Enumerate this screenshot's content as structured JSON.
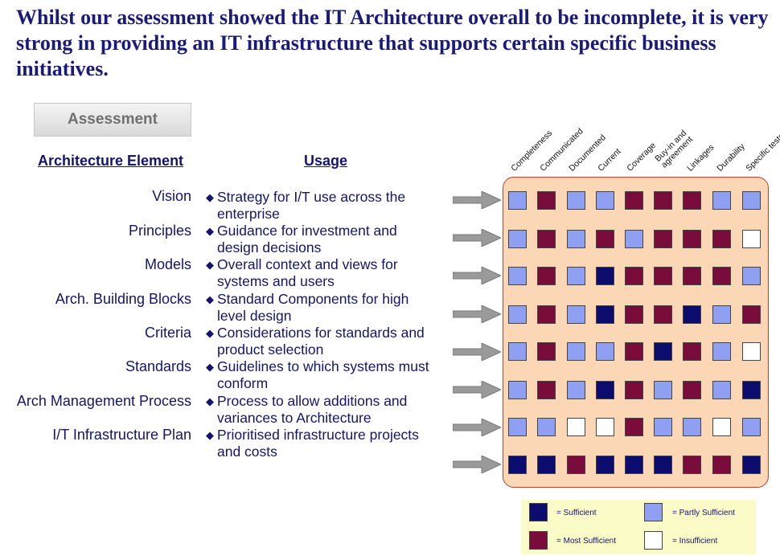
{
  "headline": "Whilst our assessment showed the IT Architecture overall to be incomplete, it is very strong in providing an IT infrastructure that supports certain specific business initiatives.",
  "assessment_label": "Assessment",
  "column_headers": {
    "element": "Architecture Element",
    "usage": "Usage"
  },
  "rows": [
    {
      "element": "Vision",
      "usage_line1": "Strategy for I/T use across the",
      "usage_line2": "enterprise"
    },
    {
      "element": "Principles",
      "usage_line1": "Guidance for investment and",
      "usage_line2": "design decisions"
    },
    {
      "element": "Models",
      "usage_line1": "Overall context and views for",
      "usage_line2": "systems and users"
    },
    {
      "element": "Arch. Building Blocks",
      "usage_line1": "Standard Components for high",
      "usage_line2": "level design"
    },
    {
      "element": "Criteria",
      "usage_line1": "Considerations for standards and",
      "usage_line2": "product selection"
    },
    {
      "element": "Standards",
      "usage_line1": "Guidelines to which systems must",
      "usage_line2": "conform"
    },
    {
      "element": "Arch Management Process",
      "usage_line1": "Process to allow additions and",
      "usage_line2": "variances to Architecture"
    },
    {
      "element": "I/T Infrastructure Plan",
      "usage_line1": "Prioritised infrastructure projects",
      "usage_line2": "and costs"
    }
  ],
  "criteria": [
    {
      "line1": "Completeness",
      "line2": ""
    },
    {
      "line1": "Communicated",
      "line2": ""
    },
    {
      "line1": "Documented",
      "line2": ""
    },
    {
      "line1": "Current",
      "line2": ""
    },
    {
      "line1": "Coverage",
      "line2": ""
    },
    {
      "line1": "Buy-in and",
      "line2": "agreement"
    },
    {
      "line1": "Linkages",
      "line2": ""
    },
    {
      "line1": "Durability",
      "line2": ""
    },
    {
      "line1": "Specific tests",
      "line2": ""
    }
  ],
  "rating_colors": {
    "S": "#0c0c6e",
    "M": "#7a0c3c",
    "P": "#8f9ff2",
    "I": "#ffffff"
  },
  "matrix": [
    [
      "P",
      "M",
      "P",
      "P",
      "M",
      "M",
      "M",
      "P",
      "P"
    ],
    [
      "P",
      "M",
      "P",
      "M",
      "P",
      "M",
      "M",
      "M",
      "I"
    ],
    [
      "P",
      "M",
      "P",
      "S",
      "M",
      "M",
      "M",
      "M",
      "P"
    ],
    [
      "P",
      "M",
      "P",
      "S",
      "M",
      "M",
      "S",
      "P",
      "M"
    ],
    [
      "P",
      "M",
      "P",
      "P",
      "M",
      "S",
      "M",
      "P",
      "I"
    ],
    [
      "P",
      "M",
      "P",
      "S",
      "M",
      "P",
      "M",
      "P",
      "S"
    ],
    [
      "P",
      "P",
      "I",
      "I",
      "M",
      "P",
      "P",
      "I",
      "P"
    ],
    [
      "S",
      "S",
      "M",
      "S",
      "S",
      "S",
      "M",
      "M",
      "S"
    ]
  ],
  "legend": {
    "sufficient": "= Sufficient",
    "partly_sufficient": "= Partly Sufficient",
    "most_sufficient": "= Most Sufficient",
    "insufficient": "= Insufficient"
  }
}
